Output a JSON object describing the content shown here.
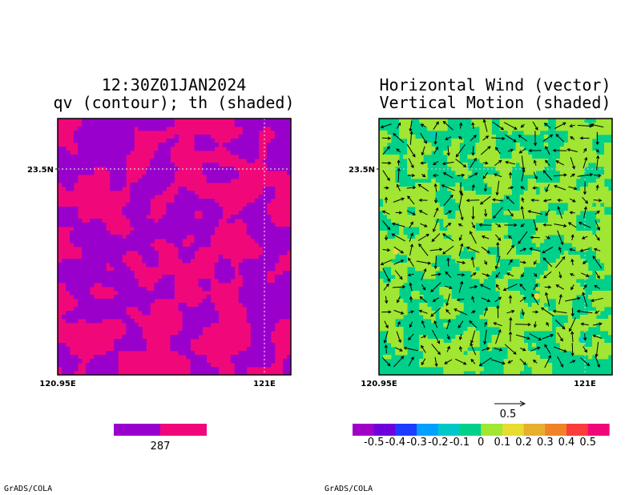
{
  "credit": "GrADS/COLA",
  "chart_data": [
    {
      "type": "heatmap",
      "title_lines": [
        "12:30Z01JAN2024",
        "qv (contour); th (shaded)"
      ],
      "x_ticks": [
        "120.95E",
        "121E"
      ],
      "y_ticks": [
        "23.5N"
      ],
      "grid": "dotted",
      "colors": {
        "low": "#9a00cc",
        "high": "#f0087a",
        "grid": "#d8d8d8"
      },
      "colorbar": {
        "colors": [
          "#9a00cc",
          "#f0087a"
        ],
        "labels": [
          "287"
        ]
      }
    },
    {
      "type": "heatmap",
      "title_lines": [
        "Horizontal Wind (vector)",
        "Vertical Motion (shaded)"
      ],
      "x_ticks": [
        "120.95E",
        "121E"
      ],
      "y_ticks": [
        "23.5N"
      ],
      "grid": "dotted",
      "vector_reference": "0.5",
      "colors": {
        "main_a": "#00d08a",
        "main_b": "#a0e632",
        "spot_yellow": "#e6dc32",
        "spot_cyan": "#00c8c8",
        "arrow": "#000000"
      },
      "colorbar": {
        "colors": [
          "#a000c8",
          "#6e00dc",
          "#1e3cff",
          "#00a0ff",
          "#00c8c8",
          "#00d08a",
          "#a0e632",
          "#e6dc32",
          "#e6af2d",
          "#f08228",
          "#fa3c3c",
          "#f0087a"
        ],
        "labels": [
          "-0.5",
          "-0.4",
          "-0.3",
          "-0.2",
          "-0.1",
          "0",
          "0.1",
          "0.2",
          "0.3",
          "0.4",
          "0.5"
        ]
      }
    }
  ]
}
